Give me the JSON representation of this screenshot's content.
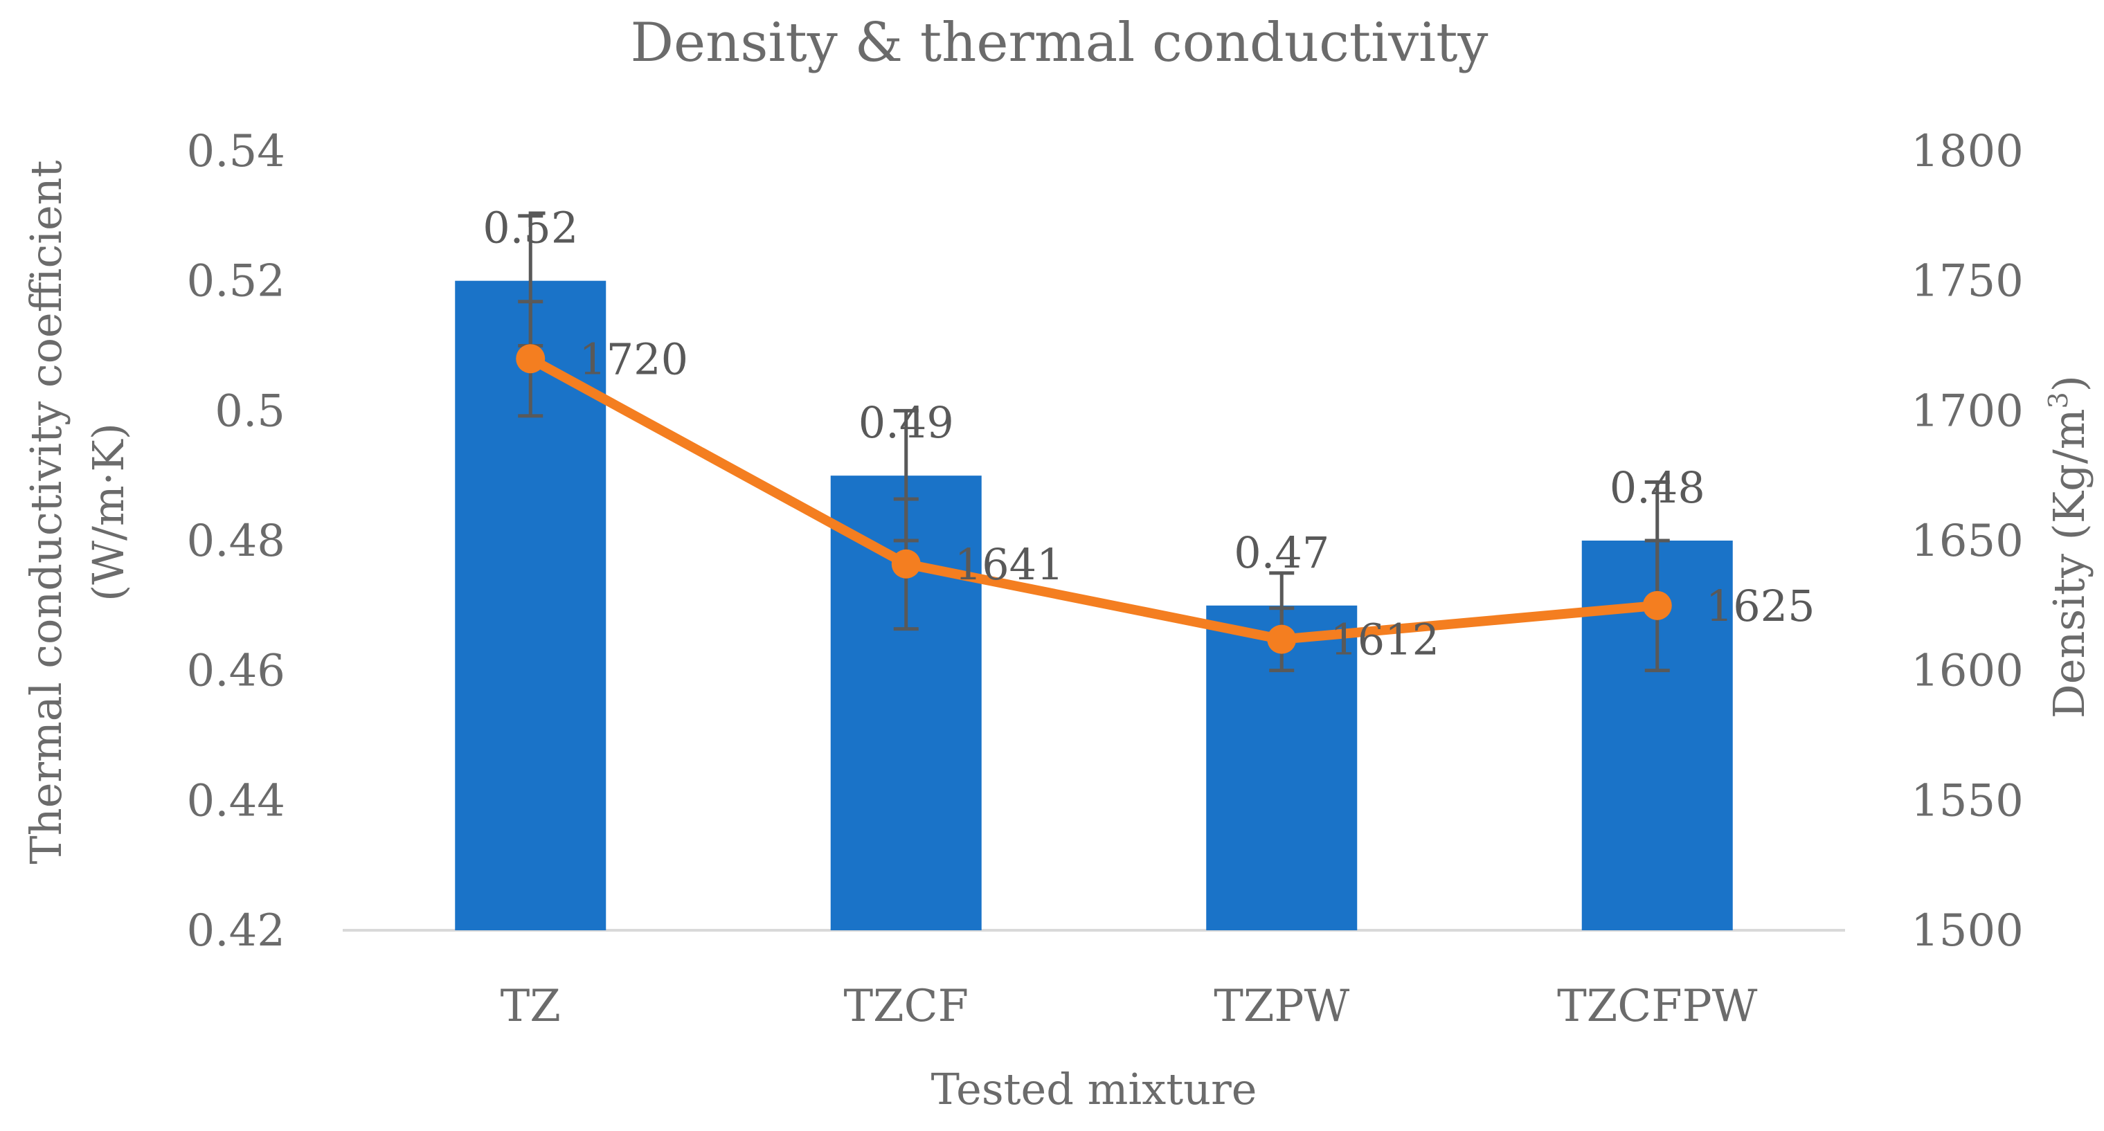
{
  "chart_data": {
    "type": "bar+line",
    "title": "Density & thermal conductivity",
    "categories": [
      "TZ",
      "TZCF",
      "TZPW",
      "TZCFPW"
    ],
    "series": [
      {
        "name": "Thermal conductivity",
        "kind": "bar",
        "axis": "left",
        "values": [
          0.52,
          0.49,
          0.47,
          0.48
        ],
        "labels": [
          "0.52",
          "0.49",
          "0.47",
          "0.48"
        ],
        "error": [
          0.01,
          0.01,
          0.005,
          0.009
        ],
        "color": "#1a73c8"
      },
      {
        "name": "Density",
        "kind": "line",
        "axis": "right",
        "values": [
          1720,
          1641,
          1612,
          1625
        ],
        "labels": [
          "1720",
          "1641",
          "1612",
          "1625"
        ],
        "error": [
          22,
          25,
          12,
          25
        ],
        "color": "#f47e20"
      }
    ],
    "ylim_left": [
      0.42,
      0.54
    ],
    "yticks_left": [
      0.42,
      0.44,
      0.46,
      0.48,
      0.5,
      0.52,
      0.54
    ],
    "ytick_labels_left": [
      "0.42",
      "0.44",
      "0.46",
      "0.48",
      "0.5",
      "0.52",
      "0.54"
    ],
    "ylim_right": [
      1500,
      1800
    ],
    "yticks_right": [
      1500,
      1550,
      1600,
      1650,
      1700,
      1750,
      1800
    ],
    "ytick_labels_right": [
      "1500",
      "1550",
      "1600",
      "1650",
      "1700",
      "1750",
      "1800"
    ],
    "ylabel_left_line1": "Thermal conductivity coefficient",
    "ylabel_left_line2": "(W/m·K)",
    "ylabel_right": "Density (Kg/m",
    "ylabel_right_sup": "3",
    "ylabel_right_end": ")",
    "xlabel": "Tested mixture",
    "grid": false,
    "legend": "none",
    "axis_line_color": "#d9d9d9",
    "error_bar_color": "#595959"
  }
}
